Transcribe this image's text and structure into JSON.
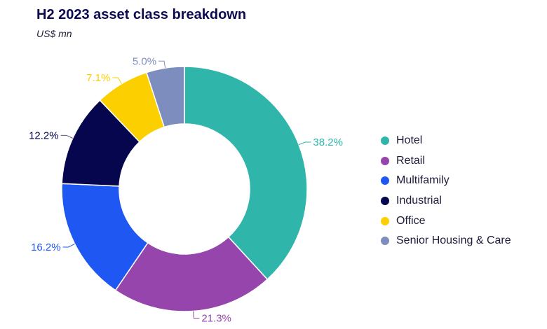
{
  "title": "H2 2023 asset class breakdown",
  "subtitle": "US$ mn",
  "chart_data": {
    "type": "donut",
    "title": "H2 2023 asset class breakdown",
    "subtitle": "US$ mn",
    "unit": "%",
    "categories": [
      "Hotel",
      "Retail",
      "Multifamily",
      "Industrial",
      "Office",
      "Senior Housing & Care"
    ],
    "values": [
      38.2,
      21.3,
      16.2,
      12.2,
      7.1,
      5.0
    ],
    "labels": [
      "38.2%",
      "21.3%",
      "16.2%",
      "12.2%",
      "7.1%",
      "5.0%"
    ],
    "colors": [
      "#2fb5aa",
      "#9645ac",
      "#1f57f2",
      "#06064f",
      "#fccf00",
      "#7d8dbd"
    ],
    "legend_position": "right"
  }
}
